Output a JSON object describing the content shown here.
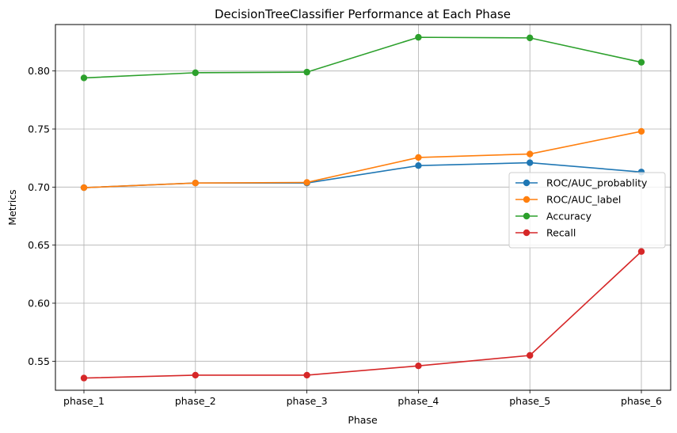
{
  "chart_data": {
    "type": "line",
    "title": "DecisionTreeClassifier Performance at Each Phase",
    "xlabel": "Phase",
    "ylabel": "Metrics",
    "categories": [
      "phase_1",
      "phase_2",
      "phase_3",
      "phase_4",
      "phase_5",
      "phase_6"
    ],
    "ylim": [
      0.525,
      0.84
    ],
    "yticks": [
      0.55,
      0.6,
      0.65,
      0.7,
      0.75,
      0.8
    ],
    "ytick_labels": [
      "0.55",
      "0.60",
      "0.65",
      "0.70",
      "0.75",
      "0.80"
    ],
    "grid": true,
    "legend_position": "center-right",
    "series": [
      {
        "name": "ROC/AUC_probablity",
        "color": "#1f77b4",
        "values": [
          0.6995,
          0.7035,
          0.7035,
          0.7185,
          0.721,
          0.713
        ]
      },
      {
        "name": "ROC/AUC_label",
        "color": "#ff7f0e",
        "values": [
          0.6995,
          0.7035,
          0.704,
          0.7255,
          0.7285,
          0.748
        ]
      },
      {
        "name": "Accuracy",
        "color": "#2ca02c",
        "values": [
          0.794,
          0.7985,
          0.799,
          0.829,
          0.8285,
          0.8075
        ]
      },
      {
        "name": "Recall",
        "color": "#d62728",
        "values": [
          0.5355,
          0.538,
          0.538,
          0.546,
          0.555,
          0.6445
        ]
      }
    ]
  }
}
